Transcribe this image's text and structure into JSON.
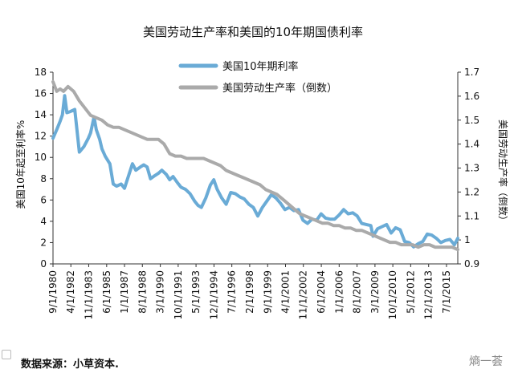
{
  "chart_data": {
    "type": "line",
    "title": "美国劳动生产率和美国的10年期国债利率",
    "ylabel_left": "美国10年起至利率%",
    "ylabel_right": "美国劳动生产率（倒数）",
    "ylim_left": [
      0,
      18
    ],
    "yticks_left": [
      "0",
      "2",
      "4",
      "6",
      "8",
      "10",
      "12",
      "14",
      "16",
      "18"
    ],
    "ylim_right": [
      0.9,
      1.7
    ],
    "yticks_right": [
      "0.9",
      "1",
      "1.1",
      "1.2",
      "1.3",
      "1.4",
      "1.5",
      "1.6",
      "1.7"
    ],
    "xlim": [
      1980.67,
      2016.5
    ],
    "x_tick_labels": [
      "9/1/1980",
      "4/1/1982",
      "11/1/1983",
      "6/1/1985",
      "1/1/1987",
      "8/1/1988",
      "3/1/1990",
      "10/1/1991",
      "5/1/1993",
      "12/1/1994",
      "7/1/1996",
      "2/1/1998",
      "9/1/1999",
      "4/1/2001",
      "11/1/2002",
      "6/1/2004",
      "1/1/2006",
      "8/1/2007",
      "3/1/2009",
      "10/1/2010",
      "5/1/2012",
      "12/1/2013",
      "7/1/2015"
    ],
    "x_tick_values": [
      1980.67,
      1982.25,
      1983.83,
      1985.42,
      1987.0,
      1988.58,
      1990.17,
      1991.75,
      1993.33,
      1994.92,
      1996.5,
      1998.08,
      1999.67,
      2001.25,
      2002.83,
      2004.42,
      2006.0,
      2007.58,
      2009.17,
      2010.75,
      2012.33,
      2013.92,
      2015.5
    ],
    "legend_position": "top-center",
    "series": [
      {
        "name": "美国10年期利率",
        "axis": "left",
        "color": "#6aabd6",
        "x": [
          1980.67,
          1981.0,
          1981.3,
          1981.5,
          1981.7,
          1981.9,
          1982.2,
          1982.6,
          1983.0,
          1983.4,
          1983.8,
          1984.0,
          1984.3,
          1984.5,
          1984.8,
          1985.0,
          1985.3,
          1985.7,
          1986.0,
          1986.3,
          1986.7,
          1987.0,
          1987.3,
          1987.7,
          1988.0,
          1988.4,
          1988.7,
          1989.0,
          1989.3,
          1989.7,
          1990.0,
          1990.3,
          1990.7,
          1991.0,
          1991.3,
          1991.7,
          1992.0,
          1992.4,
          1992.8,
          1993.2,
          1993.5,
          1993.8,
          1994.2,
          1994.6,
          1994.9,
          1995.2,
          1995.6,
          1996.0,
          1996.4,
          1996.8,
          1997.2,
          1997.6,
          1998.0,
          1998.4,
          1998.8,
          1999.2,
          1999.6,
          2000.0,
          2000.4,
          2000.8,
          2001.2,
          2001.6,
          2002.0,
          2002.4,
          2002.8,
          2003.2,
          2003.6,
          2004.0,
          2004.4,
          2004.8,
          2005.2,
          2005.6,
          2006.0,
          2006.4,
          2006.8,
          2007.2,
          2007.6,
          2008.0,
          2008.4,
          2008.8,
          2009.0,
          2009.4,
          2009.8,
          2010.2,
          2010.6,
          2011.0,
          2011.4,
          2011.8,
          2012.2,
          2012.6,
          2013.0,
          2013.4,
          2013.8,
          2014.2,
          2014.6,
          2015.0,
          2015.4,
          2015.8,
          2016.2,
          2016.5
        ],
        "y": [
          11.8,
          12.6,
          13.4,
          14.0,
          15.8,
          14.2,
          14.3,
          14.5,
          10.5,
          11.0,
          11.8,
          12.3,
          13.8,
          12.6,
          11.7,
          10.8,
          10.1,
          9.4,
          7.5,
          7.3,
          7.5,
          7.1,
          8.1,
          9.4,
          8.8,
          9.1,
          9.3,
          9.1,
          8.0,
          8.3,
          8.5,
          8.8,
          8.4,
          7.9,
          8.2,
          7.6,
          7.2,
          7.0,
          6.6,
          5.9,
          5.5,
          5.3,
          6.2,
          7.4,
          7.9,
          7.0,
          6.2,
          5.6,
          6.7,
          6.6,
          6.3,
          6.1,
          5.6,
          5.3,
          4.5,
          5.3,
          5.9,
          6.5,
          6.2,
          5.7,
          5.1,
          5.3,
          5.0,
          5.1,
          4.1,
          3.8,
          4.2,
          4.1,
          4.7,
          4.3,
          4.2,
          4.2,
          4.6,
          5.1,
          4.7,
          4.8,
          4.5,
          3.8,
          3.7,
          3.6,
          2.6,
          3.3,
          3.5,
          3.7,
          2.9,
          3.4,
          3.2,
          2.1,
          2.0,
          1.6,
          1.9,
          2.1,
          2.8,
          2.7,
          2.4,
          2.0,
          2.2,
          2.3,
          1.8,
          2.4
        ]
      },
      {
        "name": "美国劳动生产率（倒数）",
        "axis": "right",
        "color": "#aaaaaa",
        "x": [
          1980.67,
          1981.0,
          1981.3,
          1981.6,
          1982.0,
          1982.5,
          1983.0,
          1983.5,
          1984.0,
          1984.5,
          1985.0,
          1985.5,
          1986.0,
          1986.5,
          1987.0,
          1987.5,
          1988.0,
          1988.5,
          1989.0,
          1989.5,
          1990.0,
          1990.5,
          1991.0,
          1991.5,
          1992.0,
          1992.5,
          1993.0,
          1993.5,
          1994.0,
          1994.5,
          1995.0,
          1995.5,
          1996.0,
          1996.5,
          1997.0,
          1997.5,
          1998.0,
          1998.5,
          1999.0,
          1999.5,
          2000.0,
          2000.5,
          2001.0,
          2001.5,
          2002.0,
          2002.5,
          2003.0,
          2003.5,
          2004.0,
          2004.5,
          2005.0,
          2005.5,
          2006.0,
          2006.5,
          2007.0,
          2007.5,
          2008.0,
          2008.5,
          2009.0,
          2009.5,
          2010.0,
          2010.5,
          2011.0,
          2011.5,
          2012.0,
          2012.5,
          2013.0,
          2013.5,
          2014.0,
          2014.5,
          2015.0,
          2015.5,
          2016.0,
          2016.5
        ],
        "y": [
          1.66,
          1.62,
          1.63,
          1.62,
          1.64,
          1.62,
          1.58,
          1.55,
          1.52,
          1.51,
          1.5,
          1.48,
          1.47,
          1.47,
          1.46,
          1.45,
          1.44,
          1.43,
          1.42,
          1.42,
          1.42,
          1.4,
          1.36,
          1.35,
          1.35,
          1.34,
          1.34,
          1.34,
          1.34,
          1.33,
          1.32,
          1.31,
          1.29,
          1.28,
          1.27,
          1.26,
          1.25,
          1.24,
          1.23,
          1.21,
          1.2,
          1.19,
          1.17,
          1.15,
          1.13,
          1.11,
          1.1,
          1.09,
          1.08,
          1.07,
          1.07,
          1.06,
          1.06,
          1.05,
          1.05,
          1.04,
          1.04,
          1.03,
          1.02,
          1.01,
          1.0,
          0.99,
          0.99,
          0.98,
          0.98,
          0.98,
          0.97,
          0.98,
          0.98,
          0.97,
          0.97,
          0.97,
          0.97,
          0.96
        ]
      }
    ]
  },
  "footer": {
    "source": "数据来源：小草资本.",
    "watermark": "熵一荟"
  }
}
